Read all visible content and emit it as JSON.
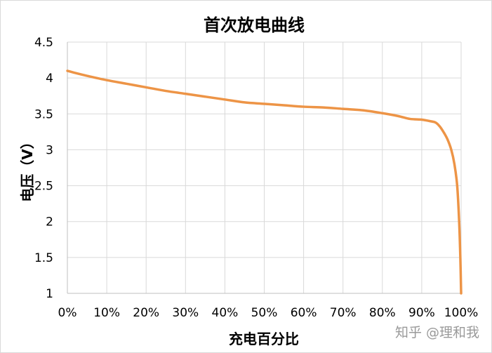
{
  "watermark": "知乎 @理和我",
  "chart_data": {
    "type": "line",
    "title": "首次放电曲线",
    "xlabel": "充电百分比",
    "ylabel": "电压（V）",
    "xlim": [
      0,
      100
    ],
    "ylim": [
      1,
      4.5
    ],
    "x_ticks": [
      "0%",
      "10%",
      "20%",
      "30%",
      "40%",
      "50%",
      "60%",
      "70%",
      "80%",
      "90%",
      "100%"
    ],
    "y_ticks": [
      "1",
      "1.5",
      "2",
      "2.5",
      "3",
      "3.5",
      "4",
      "4.5"
    ],
    "grid": true,
    "legend": "none",
    "series": [
      {
        "color": "#ED9446",
        "x": [
          0,
          2,
          5,
          10,
          15,
          20,
          25,
          30,
          35,
          40,
          45,
          50,
          55,
          60,
          65,
          70,
          75,
          80,
          84,
          87,
          90,
          92,
          93.5,
          94.5,
          95.5,
          96.5,
          97.5,
          98.3,
          99,
          99.5,
          99.8,
          100
        ],
        "y": [
          4.1,
          4.07,
          4.03,
          3.97,
          3.92,
          3.87,
          3.82,
          3.78,
          3.74,
          3.7,
          3.66,
          3.64,
          3.62,
          3.6,
          3.59,
          3.57,
          3.55,
          3.51,
          3.47,
          3.43,
          3.42,
          3.4,
          3.38,
          3.33,
          3.25,
          3.15,
          3.0,
          2.8,
          2.5,
          2.0,
          1.5,
          1.0
        ]
      }
    ]
  }
}
